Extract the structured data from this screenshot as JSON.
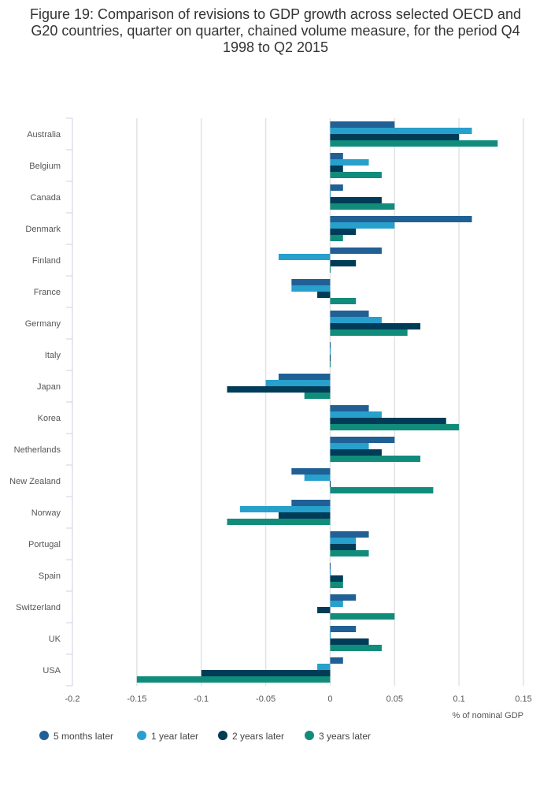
{
  "chart_data": {
    "type": "bar",
    "orientation": "horizontal",
    "title": "Figure 19: Comparison of revisions to GDP growth across selected OECD and G20 countries, quarter on quarter, chained volume measure, for the period Q4 1998 to Q2 2015",
    "xlabel": "% of nominal GDP",
    "ylabel": "",
    "xlim": [
      -0.2,
      0.15
    ],
    "xticks": [
      "-0.2",
      "-0.15",
      "-0.1",
      "-0.05",
      "0",
      "0.05",
      "0.1",
      "0.15"
    ],
    "grid": true,
    "legend_position": "bottom-left",
    "categories": [
      "Australia",
      "Belgium",
      "Canada",
      "Denmark",
      "Finland",
      "France",
      "Germany",
      "Italy",
      "Japan",
      "Korea",
      "Netherlands",
      "New Zealand",
      "Norway",
      "Portugal",
      "Spain",
      "Switzerland",
      "UK",
      "USA"
    ],
    "series": [
      {
        "name": "5 months later",
        "color": "#206095",
        "values": [
          0.05,
          0.01,
          0.01,
          0.11,
          0.04,
          -0.03,
          0.03,
          0,
          -0.04,
          0.03,
          0.05,
          -0.03,
          -0.03,
          0.03,
          0,
          0.02,
          0.02,
          0.01
        ]
      },
      {
        "name": "1 year later",
        "color": "#27a0cc",
        "values": [
          0.11,
          0.03,
          0,
          0.05,
          -0.04,
          -0.03,
          0.04,
          0,
          -0.05,
          0.04,
          0.03,
          -0.02,
          -0.07,
          0.02,
          0,
          0.01,
          0,
          -0.01
        ]
      },
      {
        "name": "2 years later",
        "color": "#003c57",
        "values": [
          0.1,
          0.01,
          0.04,
          0.02,
          0.02,
          -0.01,
          0.07,
          0,
          -0.08,
          0.09,
          0.04,
          0,
          -0.04,
          0.02,
          0.01,
          -0.01,
          0.03,
          -0.1
        ]
      },
      {
        "name": "3 years later",
        "color": "#118c7b",
        "values": [
          0.13,
          0.04,
          0.05,
          0.01,
          0,
          0.02,
          0.06,
          0,
          -0.02,
          0.1,
          0.07,
          0.08,
          -0.08,
          0.03,
          0.01,
          0.05,
          0.04,
          -0.15
        ]
      }
    ]
  }
}
